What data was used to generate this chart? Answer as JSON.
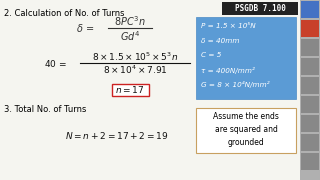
{
  "bg_color": "#f5f5f0",
  "title_text": "2. Calculation of No. of Turns",
  "section3_text": "3. Total No. of Turns",
  "psgdb_label": "PSGDB 7.100",
  "blue_box": {
    "bg": "#5b9bd5",
    "border": "#4a8ac4",
    "lines": [
      "P = 1.5 × 10⁵N",
      "δ = 40mm",
      "C = 5",
      "τ = 400N/mm²",
      "G = 8 × 10⁴N/mm²"
    ]
  },
  "note_box": {
    "text": "Assume the ends\nare squared and\ngrounded",
    "border": "#c8a060",
    "bg": "#ffffff"
  },
  "toolbar_bg": "#888888",
  "toolbar_icon_colors": [
    "#4472c4",
    "#c8402a",
    "#888888",
    "#888888",
    "#888888",
    "#888888",
    "#888888",
    "#888888",
    "#888888"
  ]
}
